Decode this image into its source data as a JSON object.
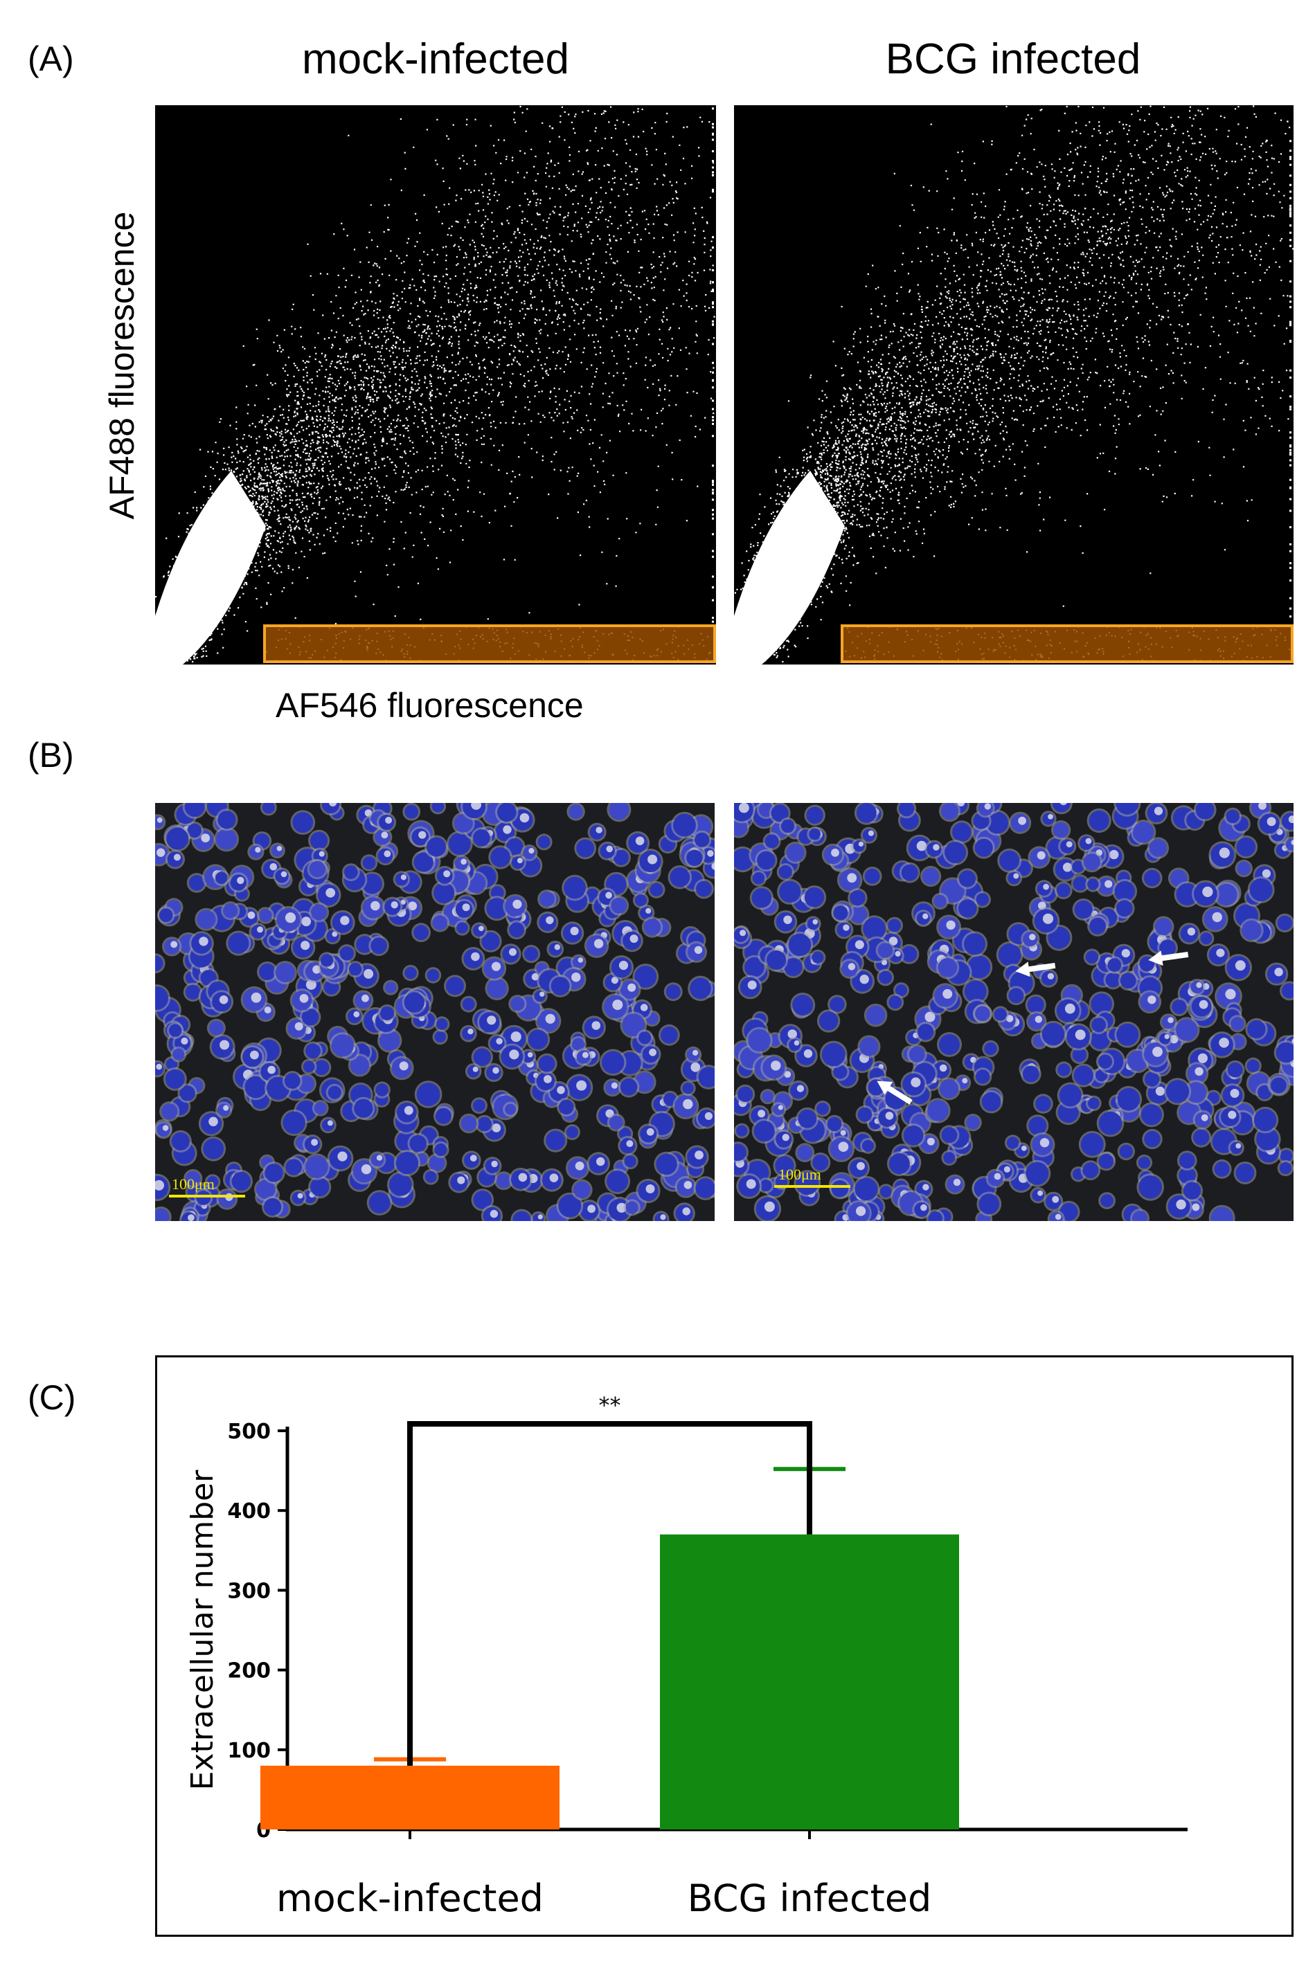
{
  "panel_a": {
    "letter": "(A)",
    "titles": [
      "mock-infected",
      "BCG infected"
    ],
    "y_axis_label": "AF488 fluorescence",
    "x_axis_label": "AF546 fluorescence",
    "gate_color": "#a05200",
    "gate_border_color": "#f5a623"
  },
  "panel_b": {
    "letter": "(B)",
    "scale_bar_label": "100μm",
    "scale_bar_color": "#f2e600",
    "arrows": 3
  },
  "panel_c": {
    "letter": "(C)",
    "significance": "**"
  },
  "chart_data": {
    "type": "bar",
    "categories": [
      "mock-infected",
      "BCG infected"
    ],
    "values": [
      80,
      370
    ],
    "errors": [
      8,
      82
    ],
    "colors": [
      "#ff6600",
      "#128a12"
    ],
    "ylabel": "Extracellular number",
    "ylim": [
      0,
      500
    ],
    "yticks": [
      0,
      100,
      200,
      300,
      400,
      500
    ],
    "significance": "**",
    "grid": false,
    "legend": "none"
  }
}
